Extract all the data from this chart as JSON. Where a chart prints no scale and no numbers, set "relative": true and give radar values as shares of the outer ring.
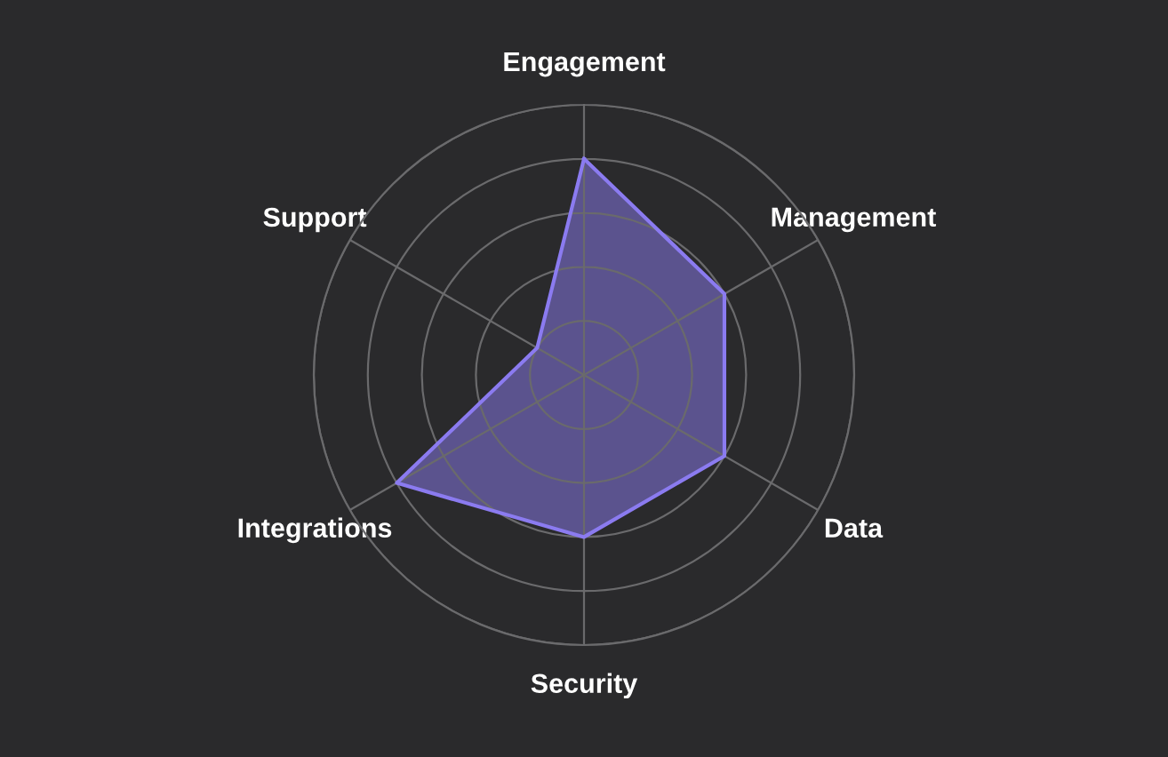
{
  "chart_data": {
    "type": "radar",
    "relative": true,
    "grid": true,
    "categories": [
      "Engagement",
      "Management",
      "Data",
      "Security",
      "Integrations",
      "Support"
    ],
    "series": [
      {
        "color": "#8b7bf0",
        "values": [
          0.8,
          0.6,
          0.6,
          0.6,
          0.8,
          0.2
        ]
      }
    ]
  }
}
